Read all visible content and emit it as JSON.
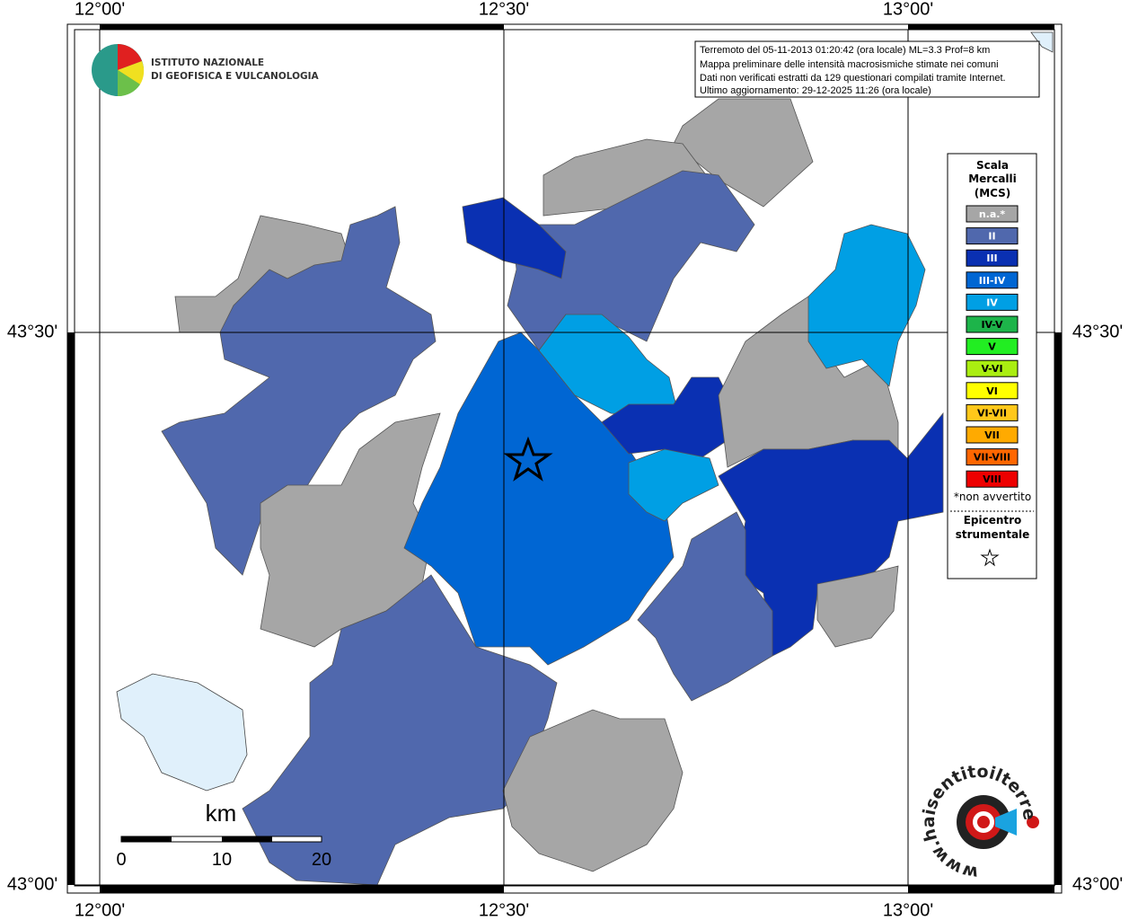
{
  "axes": {
    "top": [
      "12°00'",
      "12°30'",
      "13°00'"
    ],
    "bottom": [
      "12°00'",
      "12°30'",
      "13°00'"
    ],
    "left": [
      "43°30'",
      "43°00'"
    ],
    "right": [
      "43°30'",
      "43°00'"
    ]
  },
  "info": [
    "Terremoto del 05-11-2013 01:20:42 (ora locale) ML=3.3 Prof=8 km",
    "Mappa preliminare delle intensità macrosismiche stimate nei comuni",
    "Dati non verificati estratti da 129 questionari compilati tramite Internet.",
    "Ultimo aggiornamento: 29-12-2025 11:26 (ora locale)"
  ],
  "logo": {
    "line1": "ISTITUTO NAZIONALE",
    "line2": "DI GEOFISICA E VULCANOLOGIA"
  },
  "legend": {
    "title": [
      "Scala",
      "Mercalli",
      "(MCS)"
    ],
    "items": [
      {
        "label": "n.a.*",
        "color": "#a6a6a6"
      },
      {
        "label": "II",
        "color": "#5068ad"
      },
      {
        "label": "III",
        "color": "#0a30b2"
      },
      {
        "label": "III-IV",
        "color": "#0066d3"
      },
      {
        "label": "IV",
        "color": "#009fe4"
      },
      {
        "label": "IV-V",
        "color": "#1db44a"
      },
      {
        "label": "V",
        "color": "#22ee22"
      },
      {
        "label": "V-VI",
        "color": "#aaee11"
      },
      {
        "label": "VI",
        "color": "#ffff00"
      },
      {
        "label": "VI-VII",
        "color": "#ffc81a"
      },
      {
        "label": "VII",
        "color": "#ffaa00"
      },
      {
        "label": "VII-VIII",
        "color": "#ff6600"
      },
      {
        "label": "VIII",
        "color": "#ee0000"
      }
    ],
    "note": "*non avvertito",
    "epicenter": [
      "Epicentro",
      "strumentale"
    ]
  },
  "scale": {
    "unit": "km",
    "ticks": [
      "0",
      "10",
      "20"
    ]
  },
  "site": "www.haisentitoilterremoto.it"
}
